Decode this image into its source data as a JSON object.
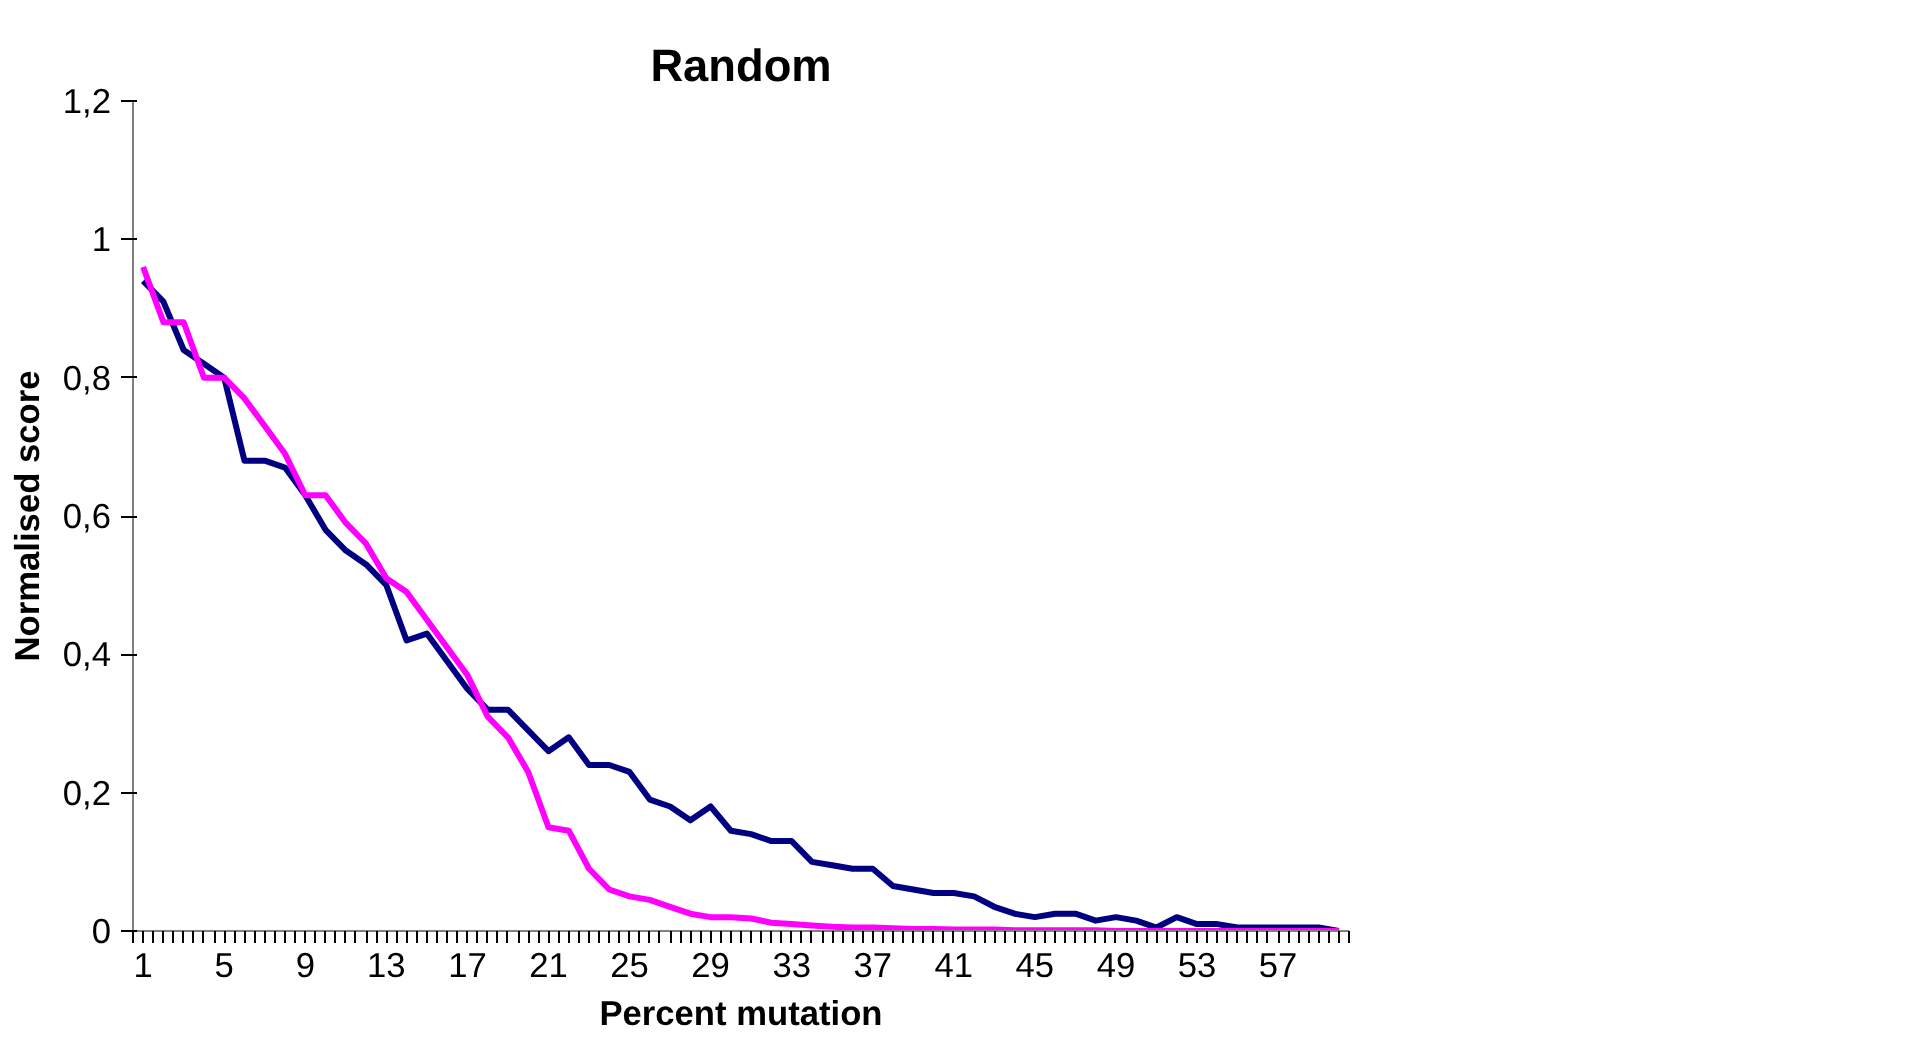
{
  "chart_data": {
    "type": "line",
    "title": "Random",
    "xlabel": "Percent mutation",
    "ylabel": "Normalised score",
    "categories": [
      "1",
      null,
      null,
      null,
      "5",
      null,
      null,
      null,
      "9",
      null,
      null,
      null,
      "13",
      null,
      null,
      null,
      "17",
      null,
      null,
      null,
      "21",
      null,
      null,
      null,
      "25",
      null,
      null,
      null,
      "29",
      null,
      null,
      null,
      "33",
      null,
      null,
      null,
      "37",
      null,
      null,
      null,
      "41",
      null,
      null,
      null,
      "45",
      null,
      null,
      null,
      "49",
      null,
      null,
      null,
      "53",
      null,
      null,
      null,
      "57",
      null,
      null,
      null
    ],
    "series": [
      {
        "color": "#000080",
        "values": [
          0.94,
          0.91,
          0.84,
          0.82,
          0.8,
          0.68,
          0.68,
          0.67,
          0.63,
          0.58,
          0.55,
          0.53,
          0.5,
          0.42,
          0.43,
          0.39,
          0.35,
          0.32,
          0.32,
          0.29,
          0.26,
          0.28,
          0.24,
          0.24,
          0.23,
          0.19,
          0.18,
          0.16,
          0.18,
          0.145,
          0.14,
          0.13,
          0.13,
          0.1,
          0.095,
          0.09,
          0.09,
          0.065,
          0.06,
          0.055,
          0.055,
          0.05,
          0.035,
          0.025,
          0.02,
          0.025,
          0.025,
          0.015,
          0.02,
          0.015,
          0.005,
          0.02,
          0.01,
          0.01,
          0.005,
          0.005,
          0.005,
          0.005,
          0.005,
          0.0
        ]
      },
      {
        "color": "#ff00ff",
        "values": [
          0.96,
          0.88,
          0.88,
          0.8,
          0.8,
          0.77,
          0.73,
          0.69,
          0.63,
          0.63,
          0.59,
          0.56,
          0.51,
          0.49,
          0.45,
          0.41,
          0.37,
          0.31,
          0.28,
          0.23,
          0.15,
          0.145,
          0.09,
          0.06,
          0.05,
          0.045,
          0.035,
          0.025,
          0.02,
          0.02,
          0.018,
          0.012,
          0.01,
          0.008,
          0.006,
          0.005,
          0.005,
          0.004,
          0.003,
          0.003,
          0.002,
          0.002,
          0.002,
          0.001,
          0.001,
          0.001,
          0.001,
          0.001,
          0.0,
          0.0,
          0.0,
          0.0,
          0.0,
          0.0,
          0.0,
          0.0,
          0.0,
          0.0,
          0.0,
          0.0
        ]
      }
    ],
    "ylim": [
      0,
      1.2
    ],
    "yticks": [
      0,
      {
        "value": 0.2,
        "label": "0,2"
      },
      {
        "value": 0.4,
        "label": "0,4"
      },
      {
        "value": 0.6,
        "label": "0,6"
      },
      {
        "value": 0.8,
        "label": "0,8"
      },
      1,
      {
        "value": 1.2,
        "label": "1,2"
      }
    ],
    "grid": false,
    "marker": "none",
    "line_style": "solid"
  }
}
